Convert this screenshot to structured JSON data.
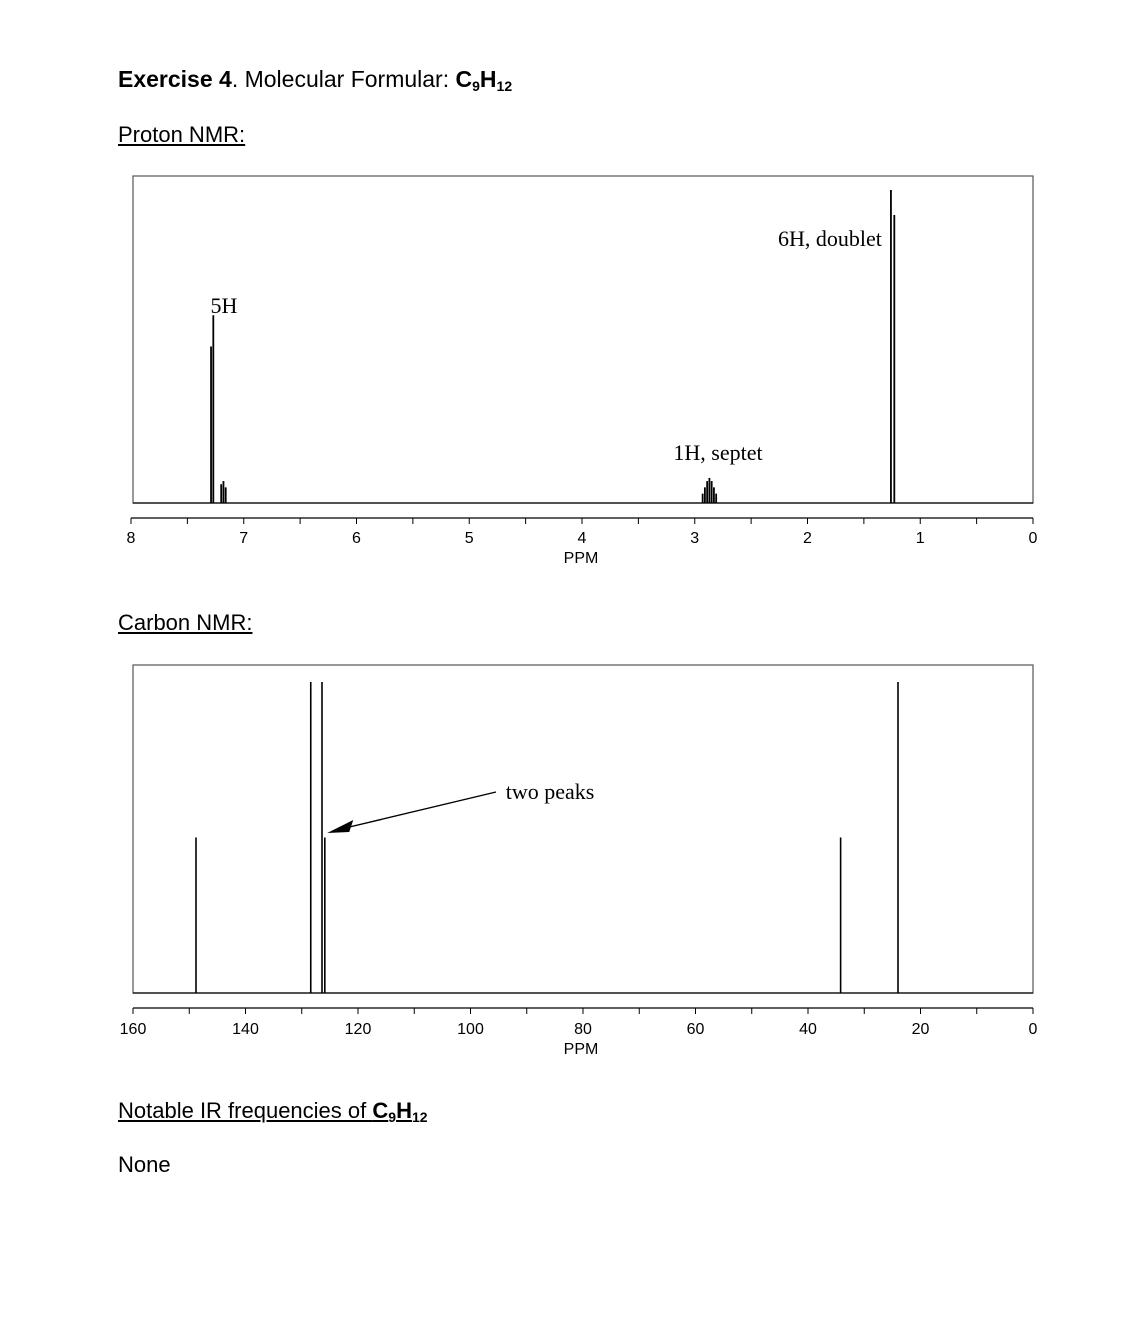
{
  "header": {
    "exercise_label": "Exercise 4",
    "title_rest": ". Molecular Formular: ",
    "formula_c": "C",
    "formula_c_sub": "9",
    "formula_h": "H",
    "formula_h_sub": "12"
  },
  "sections": {
    "proton_label": "Proton NMR:",
    "carbon_label": "Carbon NMR:"
  },
  "ir": {
    "heading_text": "Notable IR frequencies of ",
    "formula_c": "C",
    "formula_c_sub": "9",
    "formula_h": "H",
    "formula_h_sub": "12",
    "value": "None"
  },
  "chart_data": [
    {
      "type": "line",
      "name": "proton-nmr",
      "xlabel": "PPM",
      "xlim": [
        8,
        0
      ],
      "xticks": [
        8,
        7,
        6,
        5,
        4,
        3,
        2,
        1,
        0
      ],
      "peaks": [
        {
          "ppm": 7.29,
          "height": 0.5
        },
        {
          "ppm": 7.27,
          "height": 0.6
        },
        {
          "ppm": 7.2,
          "height": 0.06
        },
        {
          "ppm": 7.18,
          "height": 0.07
        },
        {
          "ppm": 7.16,
          "height": 0.05
        },
        {
          "ppm": 2.93,
          "height": 0.03
        },
        {
          "ppm": 2.91,
          "height": 0.05
        },
        {
          "ppm": 2.89,
          "height": 0.07
        },
        {
          "ppm": 2.87,
          "height": 0.08
        },
        {
          "ppm": 2.85,
          "height": 0.07
        },
        {
          "ppm": 2.83,
          "height": 0.05
        },
        {
          "ppm": 2.81,
          "height": 0.03
        },
        {
          "ppm": 1.26,
          "height": 1.0
        },
        {
          "ppm": 1.23,
          "height": 0.92
        }
      ],
      "annotations": [
        {
          "text": "5H",
          "ppm": 7.25
        },
        {
          "text": "1H, septet",
          "ppm": 2.87
        },
        {
          "text": "6H, doublet",
          "ppm": 1.85
        }
      ]
    },
    {
      "type": "bar",
      "name": "carbon-nmr",
      "xlabel": "PPM",
      "xlim": [
        160,
        0
      ],
      "xticks": [
        160,
        140,
        120,
        100,
        80,
        60,
        40,
        20,
        0
      ],
      "peaks": [
        {
          "ppm": 148.8,
          "height": 0.5
        },
        {
          "ppm": 128.4,
          "height": 1.0
        },
        {
          "ppm": 126.4,
          "height": 1.0
        },
        {
          "ppm": 125.9,
          "height": 0.5
        },
        {
          "ppm": 34.2,
          "height": 0.5
        },
        {
          "ppm": 24.0,
          "height": 1.0
        }
      ],
      "annotations": [
        {
          "text": "two peaks",
          "ppm": 126.0
        }
      ]
    }
  ]
}
